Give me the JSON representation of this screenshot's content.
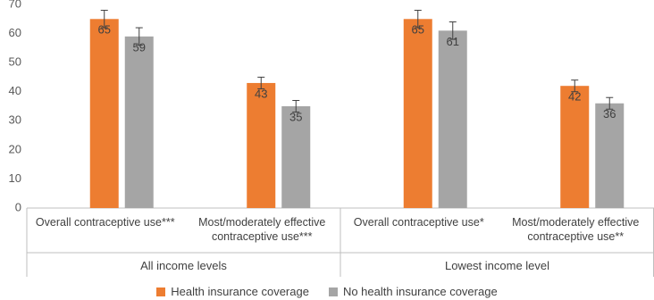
{
  "chart_data": {
    "type": "bar",
    "categories": [
      "Overall contraceptive use***",
      "Most/moderately effective contraceptive use***",
      "Overall contraceptive use*",
      "Most/moderately effective contraceptive use**"
    ],
    "groups": [
      "All income levels",
      "Lowest income level"
    ],
    "series": [
      {
        "name": "Health insurance coverage",
        "color": "#ED7D31",
        "values": [
          65,
          43,
          65,
          42
        ],
        "errors": [
          3,
          2,
          3,
          2
        ]
      },
      {
        "name": "No health insurance coverage",
        "color": "#A5A5A5",
        "values": [
          59,
          35,
          61,
          36
        ],
        "errors": [
          3,
          2,
          3,
          2
        ]
      }
    ],
    "ylim": [
      0,
      70
    ],
    "yticks": [
      0,
      10,
      20,
      30,
      40,
      50,
      60,
      70
    ],
    "grid": false,
    "legend": "bottom"
  }
}
